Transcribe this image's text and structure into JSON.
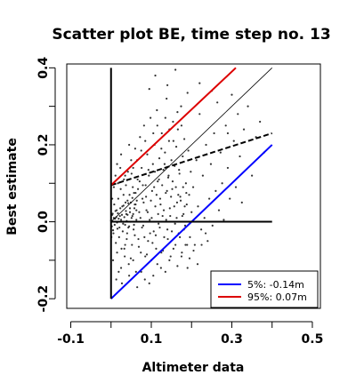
{
  "chart_data": {
    "type": "scatter",
    "title": "Scatter plot BE, time step no. 13",
    "xlabel": "Altimeter data",
    "ylabel": "Best estimate",
    "xlim": [
      -0.11,
      0.52
    ],
    "ylim": [
      -0.225,
      0.41
    ],
    "xticks": [
      -0.1,
      0.1,
      0.3,
      0.5
    ],
    "xtick_labels": [
      "-0.1",
      "0.1",
      "0.3",
      "0.5"
    ],
    "xticks_minor": [
      0.0,
      0.2,
      0.4
    ],
    "yticks": [
      -0.2,
      0.0,
      0.2,
      0.4
    ],
    "ytick_labels": [
      "-0.2",
      "0.0",
      "0.2",
      "0.4"
    ],
    "yticks_minor": [
      -0.1,
      0.1,
      0.3
    ],
    "grid": false,
    "legend_placement": "bottom-right",
    "reference_lines": [
      {
        "name": "1:1 line",
        "color": "#000000",
        "style": "solid",
        "width": 0.8,
        "points": [
          [
            0,
            0
          ],
          [
            0.4,
            0.4
          ]
        ]
      },
      {
        "name": "regression",
        "color": "#000000",
        "style": "dashed",
        "width": 2,
        "points": [
          [
            0,
            0.095
          ],
          [
            0.4,
            0.23
          ]
        ]
      },
      {
        "name": "5%",
        "color": "#0000ff",
        "style": "solid",
        "width": 2,
        "points": [
          [
            0,
            -0.2
          ],
          [
            0.4,
            0.2
          ]
        ]
      },
      {
        "name": "95%",
        "color": "#dd0000",
        "style": "solid",
        "width": 2,
        "points": [
          [
            0,
            0.095
          ],
          [
            0.31,
            0.4
          ]
        ]
      },
      {
        "name": "zero",
        "color": "#000000",
        "style": "solid",
        "width": 2,
        "points": [
          [
            0,
            0
          ],
          [
            0.4,
            0
          ]
        ]
      },
      {
        "name": "vertical",
        "color": "#000000",
        "style": "solid",
        "width": 2,
        "points": [
          [
            0,
            -0.2
          ],
          [
            0,
            0.4
          ]
        ]
      }
    ],
    "legend": [
      {
        "label": "5%: -0.14m",
        "color": "#0000ff"
      },
      {
        "label": "95%:  0.07m",
        "color": "#dd0000"
      }
    ],
    "points": [
      [
        0.0,
        0.003
      ],
      [
        0.002,
        -0.012
      ],
      [
        0.004,
        0.021
      ],
      [
        0.006,
        -0.03
      ],
      [
        0.008,
        0.045
      ],
      [
        0.01,
        0.008
      ],
      [
        0.012,
        -0.055
      ],
      [
        0.014,
        0.03
      ],
      [
        0.016,
        -0.018
      ],
      [
        0.018,
        0.06
      ],
      [
        0.02,
        -0.04
      ],
      [
        0.022,
        0.015
      ],
      [
        0.024,
        0.085
      ],
      [
        0.026,
        -0.07
      ],
      [
        0.028,
        0.04
      ],
      [
        0.03,
        -0.005
      ],
      [
        0.032,
        0.11
      ],
      [
        0.034,
        -0.09
      ],
      [
        0.036,
        0.05
      ],
      [
        0.038,
        0.02
      ],
      [
        0.04,
        -0.03
      ],
      [
        0.042,
        0.13
      ],
      [
        0.044,
        -0.11
      ],
      [
        0.046,
        0.07
      ],
      [
        0.048,
        0.0
      ],
      [
        0.05,
        0.16
      ],
      [
        0.052,
        -0.06
      ],
      [
        0.054,
        0.09
      ],
      [
        0.056,
        -0.02
      ],
      [
        0.058,
        0.035
      ],
      [
        0.06,
        0.19
      ],
      [
        0.062,
        -0.13
      ],
      [
        0.064,
        0.055
      ],
      [
        0.066,
        0.11
      ],
      [
        0.068,
        -0.045
      ],
      [
        0.07,
        0.025
      ],
      [
        0.072,
        0.22
      ],
      [
        0.074,
        -0.08
      ],
      [
        0.076,
        0.14
      ],
      [
        0.078,
        0.06
      ],
      [
        0.08,
        -0.01
      ],
      [
        0.082,
        0.25
      ],
      [
        0.084,
        -0.15
      ],
      [
        0.086,
        0.095
      ],
      [
        0.088,
        0.03
      ],
      [
        0.09,
        0.175
      ],
      [
        0.092,
        -0.05
      ],
      [
        0.094,
        0.12
      ],
      [
        0.096,
        0.005
      ],
      [
        0.098,
        0.27
      ],
      [
        0.1,
        -0.1
      ],
      [
        0.102,
        0.08
      ],
      [
        0.104,
        0.15
      ],
      [
        0.106,
        -0.025
      ],
      [
        0.108,
        0.2
      ],
      [
        0.11,
        0.04
      ],
      [
        0.112,
        -0.07
      ],
      [
        0.114,
        0.29
      ],
      [
        0.116,
        0.105
      ],
      [
        0.118,
        -0.005
      ],
      [
        0.12,
        0.165
      ],
      [
        0.122,
        0.06
      ],
      [
        0.124,
        -0.12
      ],
      [
        0.126,
        0.23
      ],
      [
        0.128,
        0.015
      ],
      [
        0.13,
        0.135
      ],
      [
        0.132,
        -0.04
      ],
      [
        0.134,
        0.18
      ],
      [
        0.136,
        0.075
      ],
      [
        0.138,
        0.32
      ],
      [
        0.14,
        -0.02
      ],
      [
        0.142,
        0.115
      ],
      [
        0.144,
        0.21
      ],
      [
        0.146,
        0.035
      ],
      [
        0.148,
        -0.09
      ],
      [
        0.15,
        0.16
      ],
      [
        0.152,
        0.085
      ],
      [
        0.154,
        0.26
      ],
      [
        0.156,
        0.0
      ],
      [
        0.158,
        0.145
      ],
      [
        0.16,
        -0.06
      ],
      [
        0.162,
        0.195
      ],
      [
        0.164,
        0.05
      ],
      [
        0.166,
        0.24
      ],
      [
        0.168,
        -0.03
      ],
      [
        0.17,
        0.125
      ],
      [
        0.172,
        0.065
      ],
      [
        0.174,
        0.3
      ],
      [
        0.176,
        -0.08
      ],
      [
        0.178,
        0.17
      ],
      [
        0.18,
        0.02
      ],
      [
        0.182,
        0.215
      ],
      [
        0.184,
        -0.01
      ],
      [
        0.186,
        0.1
      ],
      [
        0.188,
        0.045
      ],
      [
        0.19,
        -0.12
      ],
      [
        0.192,
        0.185
      ],
      [
        0.194,
        0.07
      ],
      [
        0.196,
        -0.04
      ],
      [
        0.198,
        0.13
      ],
      [
        0.2,
        0.025
      ],
      [
        0.204,
        0.09
      ],
      [
        0.208,
        -0.06
      ],
      [
        0.212,
        0.16
      ],
      [
        0.216,
        0.04
      ],
      [
        0.22,
        0.28
      ],
      [
        0.224,
        -0.02
      ],
      [
        0.228,
        0.12
      ],
      [
        0.232,
        0.01
      ],
      [
        0.236,
        0.2
      ],
      [
        0.24,
        -0.05
      ],
      [
        0.244,
        0.06
      ],
      [
        0.248,
        0.15
      ],
      [
        0.252,
        -0.01
      ],
      [
        0.256,
        0.23
      ],
      [
        0.26,
        0.08
      ],
      [
        0.264,
        0.31
      ],
      [
        0.268,
        0.03
      ],
      [
        0.272,
        0.18
      ],
      [
        0.276,
        0.1
      ],
      [
        0.28,
        0.005
      ],
      [
        0.285,
        0.25
      ],
      [
        0.29,
        0.14
      ],
      [
        0.295,
        0.06
      ],
      [
        0.3,
        0.33
      ],
      [
        0.305,
        0.21
      ],
      [
        0.31,
        0.09
      ],
      [
        0.315,
        0.28
      ],
      [
        0.32,
        0.17
      ],
      [
        0.325,
        0.05
      ],
      [
        0.33,
        0.24
      ],
      [
        0.34,
        0.3
      ],
      [
        0.35,
        0.12
      ],
      [
        0.36,
        0.22
      ],
      [
        0.37,
        0.26
      ],
      [
        0.38,
        0.18
      ],
      [
        0.16,
        0.395
      ],
      [
        0.11,
        0.38
      ],
      [
        0.14,
        0.355
      ],
      [
        0.19,
        0.335
      ],
      [
        0.22,
        0.36
      ],
      [
        0.25,
        0.34
      ],
      [
        0.095,
        0.345
      ],
      [
        0.29,
        0.23
      ],
      [
        0.015,
        0.15
      ],
      [
        0.025,
        0.175
      ],
      [
        0.035,
        0.12
      ],
      [
        0.045,
        0.2
      ],
      [
        0.055,
        0.14
      ],
      [
        0.065,
        0.16
      ],
      [
        0.075,
        0.185
      ],
      [
        0.085,
        0.21
      ],
      [
        0.105,
        0.23
      ],
      [
        0.115,
        0.25
      ],
      [
        0.125,
        0.19
      ],
      [
        0.135,
        0.27
      ],
      [
        0.145,
        0.24
      ],
      [
        0.155,
        0.21
      ],
      [
        0.165,
        0.285
      ],
      [
        0.175,
        0.25
      ],
      [
        0.005,
        -0.1
      ],
      [
        0.015,
        -0.08
      ],
      [
        0.025,
        -0.12
      ],
      [
        0.035,
        -0.06
      ],
      [
        0.045,
        -0.14
      ],
      [
        0.055,
        -0.1
      ],
      [
        0.065,
        -0.17
      ],
      [
        0.075,
        -0.13
      ],
      [
        0.085,
        -0.09
      ],
      [
        0.095,
        -0.16
      ],
      [
        0.105,
        -0.14
      ],
      [
        0.115,
        -0.11
      ],
      [
        0.125,
        -0.08
      ],
      [
        0.135,
        -0.13
      ],
      [
        0.145,
        -0.1
      ],
      [
        0.155,
        -0.07
      ],
      [
        0.165,
        -0.115
      ],
      [
        0.175,
        -0.09
      ],
      [
        0.185,
        -0.06
      ],
      [
        0.195,
        -0.095
      ],
      [
        0.205,
        -0.075
      ],
      [
        0.215,
        -0.11
      ],
      [
        0.225,
        -0.06
      ],
      [
        0.235,
        -0.03
      ],
      [
        0.003,
        0.06
      ],
      [
        0.007,
        0.09
      ],
      [
        0.011,
        0.12
      ],
      [
        0.013,
        -0.15
      ],
      [
        0.017,
        0.1
      ],
      [
        0.019,
        -0.13
      ],
      [
        0.023,
        0.14
      ],
      [
        0.027,
        -0.16
      ],
      [
        0.031,
        0.07
      ],
      [
        0.033,
        -0.07
      ],
      [
        0.037,
        0.095
      ],
      [
        0.039,
        -0.045
      ],
      [
        0.041,
        0.055
      ],
      [
        0.043,
        -0.015
      ],
      [
        0.047,
        0.035
      ],
      [
        0.049,
        -0.095
      ],
      [
        0.051,
        0.125
      ],
      [
        0.053,
        0.015
      ],
      [
        0.057,
        0.075
      ],
      [
        0.059,
        -0.035
      ],
      [
        0.061,
        0.045
      ],
      [
        0.063,
        0.005
      ],
      [
        0.067,
        0.085
      ],
      [
        0.069,
        -0.065
      ],
      [
        0.071,
        0.105
      ],
      [
        0.073,
        0.01
      ],
      [
        0.077,
        -0.015
      ],
      [
        0.079,
        0.095
      ],
      [
        0.081,
        0.05
      ],
      [
        0.083,
        -0.04
      ],
      [
        0.087,
        0.065
      ],
      [
        0.089,
        -0.085
      ],
      [
        0.091,
        0.025
      ],
      [
        0.093,
        0.135
      ],
      [
        0.097,
        -0.03
      ],
      [
        0.099,
        0.055
      ],
      [
        0.101,
        0.01
      ],
      [
        0.103,
        -0.055
      ],
      [
        0.107,
        0.09
      ],
      [
        0.109,
        0.13
      ],
      [
        0.111,
        -0.035
      ],
      [
        0.113,
        0.07
      ],
      [
        0.117,
        0.02
      ],
      [
        0.119,
        0.11
      ],
      [
        0.121,
        -0.015
      ],
      [
        0.123,
        0.045
      ],
      [
        0.127,
        0.095
      ],
      [
        0.129,
        -0.075
      ],
      [
        0.131,
        0.03
      ],
      [
        0.133,
        0.15
      ],
      [
        0.137,
        0.005
      ],
      [
        0.139,
        0.08
      ],
      [
        0.141,
        -0.045
      ],
      [
        0.143,
        0.12
      ],
      [
        0.147,
        0.015
      ],
      [
        0.149,
        0.065
      ],
      [
        0.151,
        -0.025
      ],
      [
        0.153,
        0.105
      ],
      [
        0.157,
        0.04
      ],
      [
        0.159,
        -0.005
      ],
      [
        0.161,
        0.09
      ],
      [
        0.163,
        0.01
      ],
      [
        0.167,
        0.07
      ],
      [
        0.169,
        0.135
      ],
      [
        0.171,
        -0.04
      ],
      [
        0.173,
        0.055
      ],
      [
        0.177,
        0.015
      ],
      [
        0.179,
        0.09
      ],
      [
        0.181,
        -0.02
      ],
      [
        0.183,
        0.04
      ],
      [
        0.187,
        0.075
      ],
      [
        0.189,
        -0.06
      ],
      [
        0.001,
        -0.04
      ],
      [
        0.003,
        0.018
      ],
      [
        0.005,
        -0.022
      ],
      [
        0.007,
        0.01
      ],
      [
        0.009,
        -0.008
      ],
      [
        0.011,
        0.028
      ],
      [
        0.013,
        0.012
      ],
      [
        0.015,
        -0.002
      ],
      [
        0.017,
        0.022
      ],
      [
        0.019,
        0.008
      ],
      [
        0.021,
        -0.015
      ],
      [
        0.023,
        0.035
      ],
      [
        0.025,
        0.005
      ],
      [
        0.027,
        0.018
      ],
      [
        0.029,
        -0.025
      ],
      [
        0.031,
        0.042
      ],
      [
        0.033,
        0.012
      ],
      [
        0.035,
        -0.008
      ],
      [
        0.037,
        0.028
      ],
      [
        0.039,
        0.002
      ],
      [
        0.041,
        0.018
      ],
      [
        0.043,
        0.048
      ],
      [
        0.045,
        -0.012
      ],
      [
        0.047,
        0.025
      ],
      [
        0.049,
        0.05
      ],
      [
        0.051,
        0.01
      ],
      [
        0.053,
        0.062
      ],
      [
        0.055,
        0.02
      ],
      [
        0.057,
        -0.008
      ],
      [
        0.059,
        0.045
      ],
      [
        0.061,
        0.075
      ],
      [
        0.063,
        0.03
      ]
    ]
  }
}
